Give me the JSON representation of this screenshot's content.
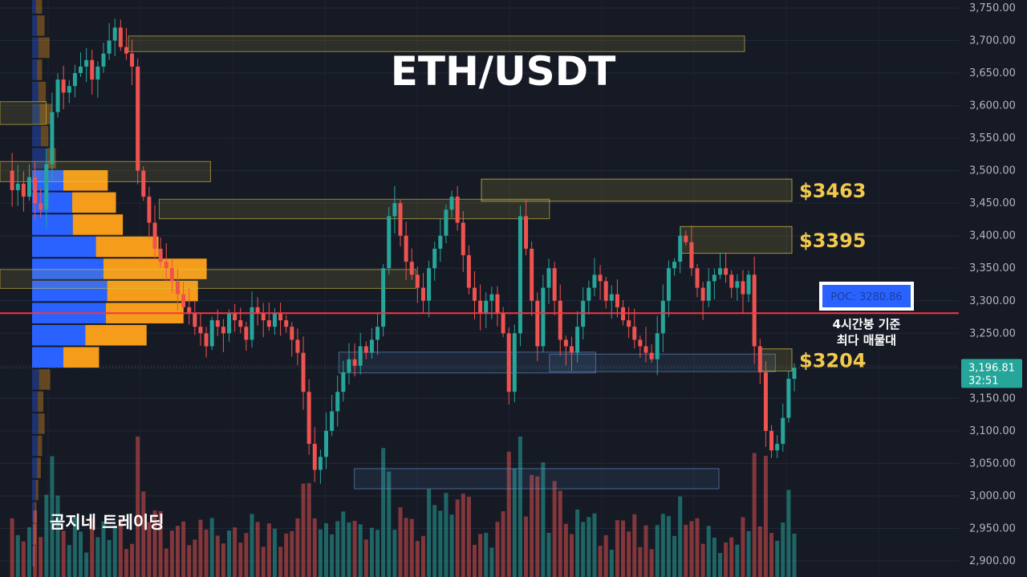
{
  "chart_data": {
    "type": "candlestick",
    "title": "ETH/USDT",
    "brand": "곰지네 트레이딩",
    "y_axis": {
      "range": [
        2880,
        3770
      ],
      "ticks": [
        "3,750.00",
        "3,700.00",
        "3,650.00",
        "3,600.00",
        "3,550.00",
        "3,500.00",
        "3,450.00",
        "3,400.00",
        "3,350.00",
        "3,300.00",
        "3,250.00",
        "3,200.00",
        "3,150.00",
        "3,100.00",
        "3,050.00",
        "3,000.00",
        "2,950.00",
        "2,900.00"
      ]
    },
    "current_price": {
      "value": 3196.81,
      "label": "3,196.81",
      "countdown": "32:51",
      "color": "#26a69a"
    },
    "poc": {
      "value": 3280.86,
      "label": "POC: 3280.86",
      "note_line1": "4시간봉 기준",
      "note_line2": "최다 매물대",
      "line_color": "#f23645",
      "box_color": "#2962ff"
    },
    "levels": [
      {
        "label": "$3463",
        "value": 3463,
        "low": 3453,
        "high": 3487
      },
      {
        "label": "$3395",
        "value": 3395,
        "low": 3373,
        "high": 3414
      },
      {
        "label": "$3204",
        "value": 3204,
        "low": 3192,
        "high": 3226
      }
    ],
    "zones": [
      {
        "low": 3683,
        "high": 3707,
        "kind": "supply",
        "from": 0.125,
        "to": 0.725
      },
      {
        "low": 3483,
        "high": 3514,
        "kind": "supply",
        "from": 0.0,
        "to": 0.205
      },
      {
        "low": 3426,
        "high": 3456,
        "kind": "supply",
        "from": 0.155,
        "to": 0.535
      },
      {
        "low": 3319,
        "high": 3348,
        "kind": "supply",
        "from": 0.0,
        "to": 0.405
      },
      {
        "low": 3189,
        "high": 3221,
        "kind": "demand",
        "from": 0.33,
        "to": 0.58
      },
      {
        "low": 3191,
        "high": 3218,
        "kind": "demand",
        "from": 0.535,
        "to": 0.755
      },
      {
        "low": 3011,
        "high": 3042,
        "kind": "demand",
        "from": 0.345,
        "to": 0.7
      },
      {
        "low": 3571,
        "high": 3606,
        "kind": "supply",
        "from": 0.0,
        "to": 0.045
      }
    ],
    "volume_profile": {
      "bin_size": 34,
      "bins_start": 2890,
      "buy": [
        2,
        3,
        4,
        6,
        8,
        9,
        10,
        9,
        11,
        50,
        85,
        118,
        120,
        114,
        102,
        65,
        64,
        50,
        24,
        14,
        12,
        10,
        8,
        10,
        8,
        6,
        5
      ],
      "sell": [
        2,
        3,
        3,
        4,
        6,
        7,
        10,
        9,
        18,
        57,
        98,
        124,
        145,
        165,
        100,
        80,
        70,
        71,
        14,
        12,
        20,
        12,
        8,
        18,
        12,
        10,
        6
      ],
      "buy_color": "#2962ff",
      "sell_color": "#f59c1a"
    },
    "candles": {
      "x_start": 0,
      "x_end": 990,
      "series": [
        3500,
        3470,
        3480,
        3460,
        3490,
        3450,
        3440,
        3510,
        3590,
        3640,
        3620,
        3630,
        3650,
        3660,
        3670,
        3640,
        3660,
        3680,
        3700,
        3720,
        3690,
        3680,
        3660,
        3500,
        3460,
        3420,
        3380,
        3360,
        3350,
        3330,
        3310,
        3290,
        3280,
        3260,
        3250,
        3230,
        3270,
        3260,
        3250,
        3280,
        3270,
        3260,
        3240,
        3290,
        3280,
        3270,
        3260,
        3280,
        3270,
        3260,
        3240,
        3220,
        3160,
        3080,
        3040,
        3060,
        3100,
        3130,
        3160,
        3190,
        3210,
        3200,
        3230,
        3220,
        3240,
        3260,
        3350,
        3430,
        3450,
        3400,
        3360,
        3340,
        3320,
        3300,
        3350,
        3380,
        3400,
        3440,
        3460,
        3420,
        3370,
        3320,
        3300,
        3280,
        3300,
        3310,
        3280,
        3250,
        3160,
        3250,
        3430,
        3380,
        3300,
        3230,
        3320,
        3350,
        3300,
        3240,
        3230,
        3220,
        3260,
        3300,
        3320,
        3340,
        3330,
        3300,
        3310,
        3290,
        3270,
        3260,
        3240,
        3230,
        3220,
        3210,
        3250,
        3300,
        3350,
        3360,
        3400,
        3390,
        3350,
        3320,
        3300,
        3330,
        3340,
        3350,
        3340,
        3320,
        3330,
        3310,
        3340,
        3230,
        3190,
        3100,
        3070,
        3080,
        3120,
        3180,
        3197
      ]
    },
    "volume": {
      "baseline_price": 2880,
      "scale_top_price": 3050,
      "max": 100
    }
  }
}
